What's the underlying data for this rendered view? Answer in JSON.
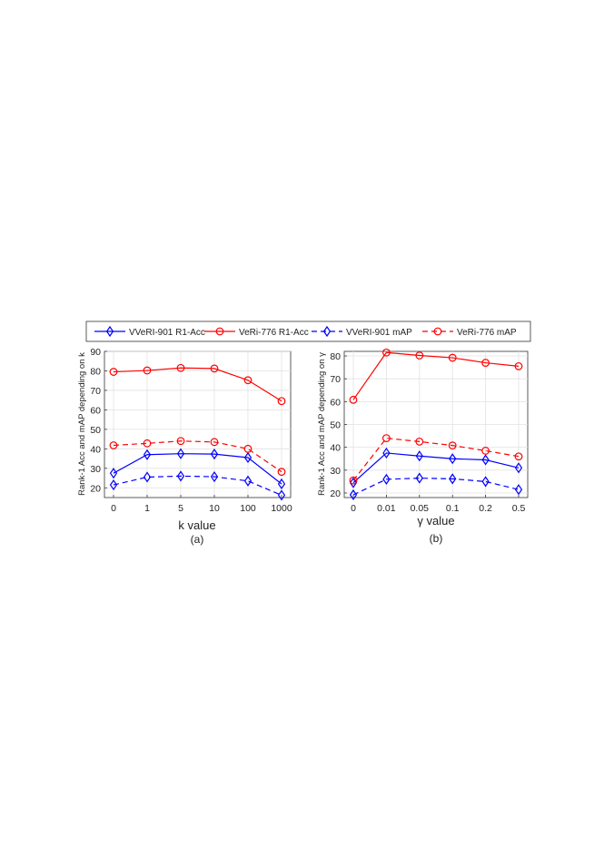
{
  "legend": {
    "entries": [
      {
        "label": "VVeRI-901 R1-Acc",
        "color": "#0000ff",
        "marker": "diamond",
        "dash": "solid"
      },
      {
        "label": "VeRi-776 R1-Acc",
        "color": "#ff0000",
        "marker": "circle",
        "dash": "solid"
      },
      {
        "label": "VVeRI-901 mAP",
        "color": "#0000ff",
        "marker": "diamond",
        "dash": "dashed"
      },
      {
        "label": "VeRi-776 mAP",
        "color": "#ff0000",
        "marker": "circle",
        "dash": "dashed"
      }
    ]
  },
  "chart_data": [
    {
      "type": "line",
      "caption": "(a)",
      "xlabel": "k value",
      "ylabel": "Rank-1 Acc and mAP depending on k",
      "categories": [
        "0",
        "1",
        "5",
        "10",
        "100",
        "1000"
      ],
      "ylim": [
        15,
        90
      ],
      "yticks": [
        20,
        30,
        40,
        50,
        60,
        70,
        80,
        90
      ],
      "grid": true,
      "series": [
        {
          "name": "VVeRI-901 R1-Acc",
          "values": [
            27.5,
            37.0,
            37.5,
            37.3,
            35.5,
            22.0
          ]
        },
        {
          "name": "VeRi-776 R1-Acc",
          "values": [
            79.5,
            80.2,
            81.5,
            81.2,
            75.2,
            64.5
          ]
        },
        {
          "name": "VVeRI-901 mAP",
          "values": [
            21.5,
            25.5,
            26.0,
            25.7,
            23.5,
            16.2
          ]
        },
        {
          "name": "VeRi-776 mAP",
          "values": [
            41.8,
            42.8,
            44.0,
            43.5,
            40.0,
            28.2
          ]
        }
      ]
    },
    {
      "type": "line",
      "caption": "(b)",
      "xlabel": "γ value",
      "ylabel": "Rank-1 Acc and mAP depending on γ",
      "categories": [
        "0",
        "0.01",
        "0.05",
        "0.1",
        "0.2",
        "0.5"
      ],
      "ylim": [
        18,
        82
      ],
      "yticks": [
        20,
        30,
        40,
        50,
        60,
        70,
        80
      ],
      "grid": true,
      "series": [
        {
          "name": "VVeRI-901 R1-Acc",
          "values": [
            24.5,
            37.5,
            36.2,
            35.0,
            34.5,
            31.0
          ]
        },
        {
          "name": "VeRi-776 R1-Acc",
          "values": [
            60.8,
            81.5,
            80.2,
            79.2,
            77.0,
            75.5
          ]
        },
        {
          "name": "VVeRI-901 mAP",
          "values": [
            19.2,
            26.0,
            26.5,
            26.2,
            25.0,
            21.5
          ]
        },
        {
          "name": "VeRi-776 mAP",
          "values": [
            25.5,
            44.0,
            42.5,
            40.8,
            38.5,
            36.0
          ]
        }
      ]
    }
  ]
}
